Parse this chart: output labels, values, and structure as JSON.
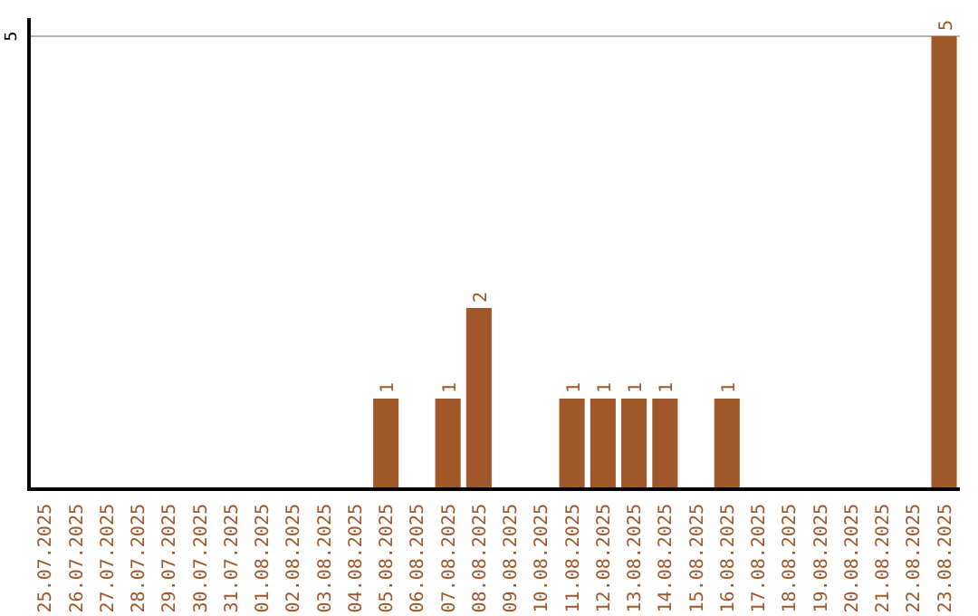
{
  "chart_data": {
    "type": "bar",
    "categories": [
      "25.07.2025",
      "26.07.2025",
      "27.07.2025",
      "28.07.2025",
      "29.07.2025",
      "30.07.2025",
      "31.07.2025",
      "01.08.2025",
      "02.08.2025",
      "03.08.2025",
      "04.08.2025",
      "05.08.2025",
      "06.08.2025",
      "07.08.2025",
      "08.08.2025",
      "09.08.2025",
      "10.08.2025",
      "11.08.2025",
      "12.08.2025",
      "13.08.2025",
      "14.08.2025",
      "15.08.2025",
      "16.08.2025",
      "17.08.2025",
      "18.08.2025",
      "19.08.2025",
      "20.08.2025",
      "21.08.2025",
      "22.08.2025",
      "23.08.2025"
    ],
    "values": [
      0,
      0,
      0,
      0,
      0,
      0,
      0,
      0,
      0,
      0,
      0,
      1,
      0,
      1,
      2,
      0,
      0,
      1,
      1,
      1,
      1,
      0,
      1,
      0,
      0,
      0,
      0,
      0,
      0,
      5
    ],
    "value_labels": [
      null,
      null,
      null,
      null,
      null,
      null,
      null,
      null,
      null,
      null,
      null,
      "1",
      null,
      "1",
      "2",
      null,
      null,
      "1",
      "1",
      "1",
      "1",
      null,
      "1",
      null,
      null,
      null,
      null,
      null,
      null,
      "5"
    ],
    "color": "#a0572a",
    "ylim": [
      0,
      5.2
    ],
    "yticks": [
      5
    ],
    "grid": "y"
  }
}
